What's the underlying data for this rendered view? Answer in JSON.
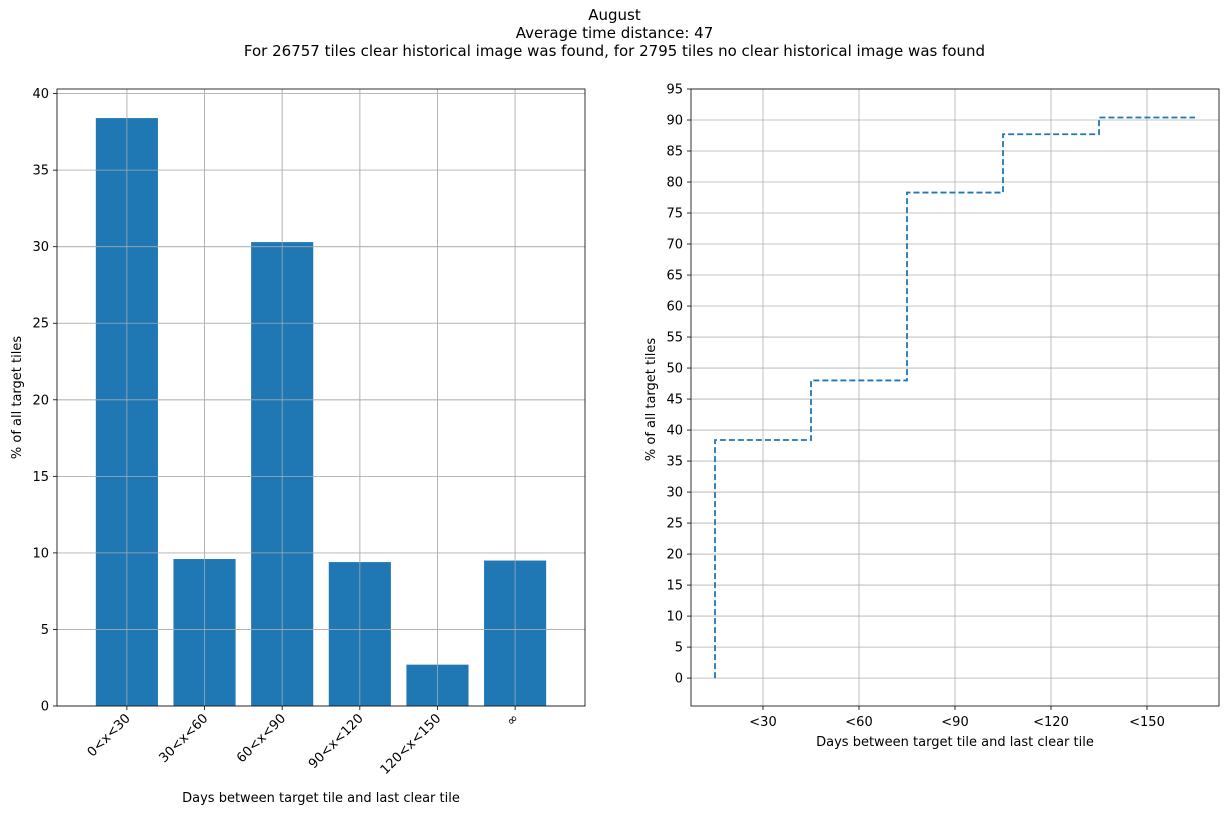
{
  "figure": {
    "title_lines": [
      "August",
      "Average time distance: 47",
      "For 26757 tiles clear historical image was found, for 2795 tiles no clear historical image was found"
    ]
  },
  "chart_data": [
    {
      "type": "bar",
      "categories": [
        "0<x<30",
        "30<x<60",
        "60<x<90",
        "90<x<120",
        "120<x<150",
        "∞"
      ],
      "values": [
        38.4,
        9.6,
        30.3,
        9.4,
        2.7,
        9.5
      ],
      "xlabel": "Days between target tile and last clear tile",
      "ylabel": "% of all target tiles",
      "ylim": [
        0,
        40.3
      ],
      "yticks": [
        0,
        5,
        10,
        15,
        20,
        25,
        30,
        35,
        40
      ],
      "grid": true,
      "color": "#1f77b4"
    },
    {
      "type": "line",
      "style": "dashed-step",
      "x": [
        15,
        45,
        75,
        105,
        135,
        165
      ],
      "y": [
        38.4,
        48.0,
        78.3,
        87.7,
        90.4,
        90.4
      ],
      "xticks": [
        30,
        60,
        90,
        120,
        150
      ],
      "xticklabels": [
        "<30",
        "<60",
        "<90",
        "<120",
        "<150"
      ],
      "xlim": [
        7.5,
        172.5
      ],
      "ylim": [
        -4.5,
        95
      ],
      "yticks": [
        0,
        5,
        10,
        15,
        20,
        25,
        30,
        35,
        40,
        45,
        50,
        55,
        60,
        65,
        70,
        75,
        80,
        85,
        90,
        95
      ],
      "xlabel": "Days between target tile and last clear tile",
      "ylabel": "% of all target tiles",
      "grid": true,
      "color": "#1f77b4"
    }
  ]
}
